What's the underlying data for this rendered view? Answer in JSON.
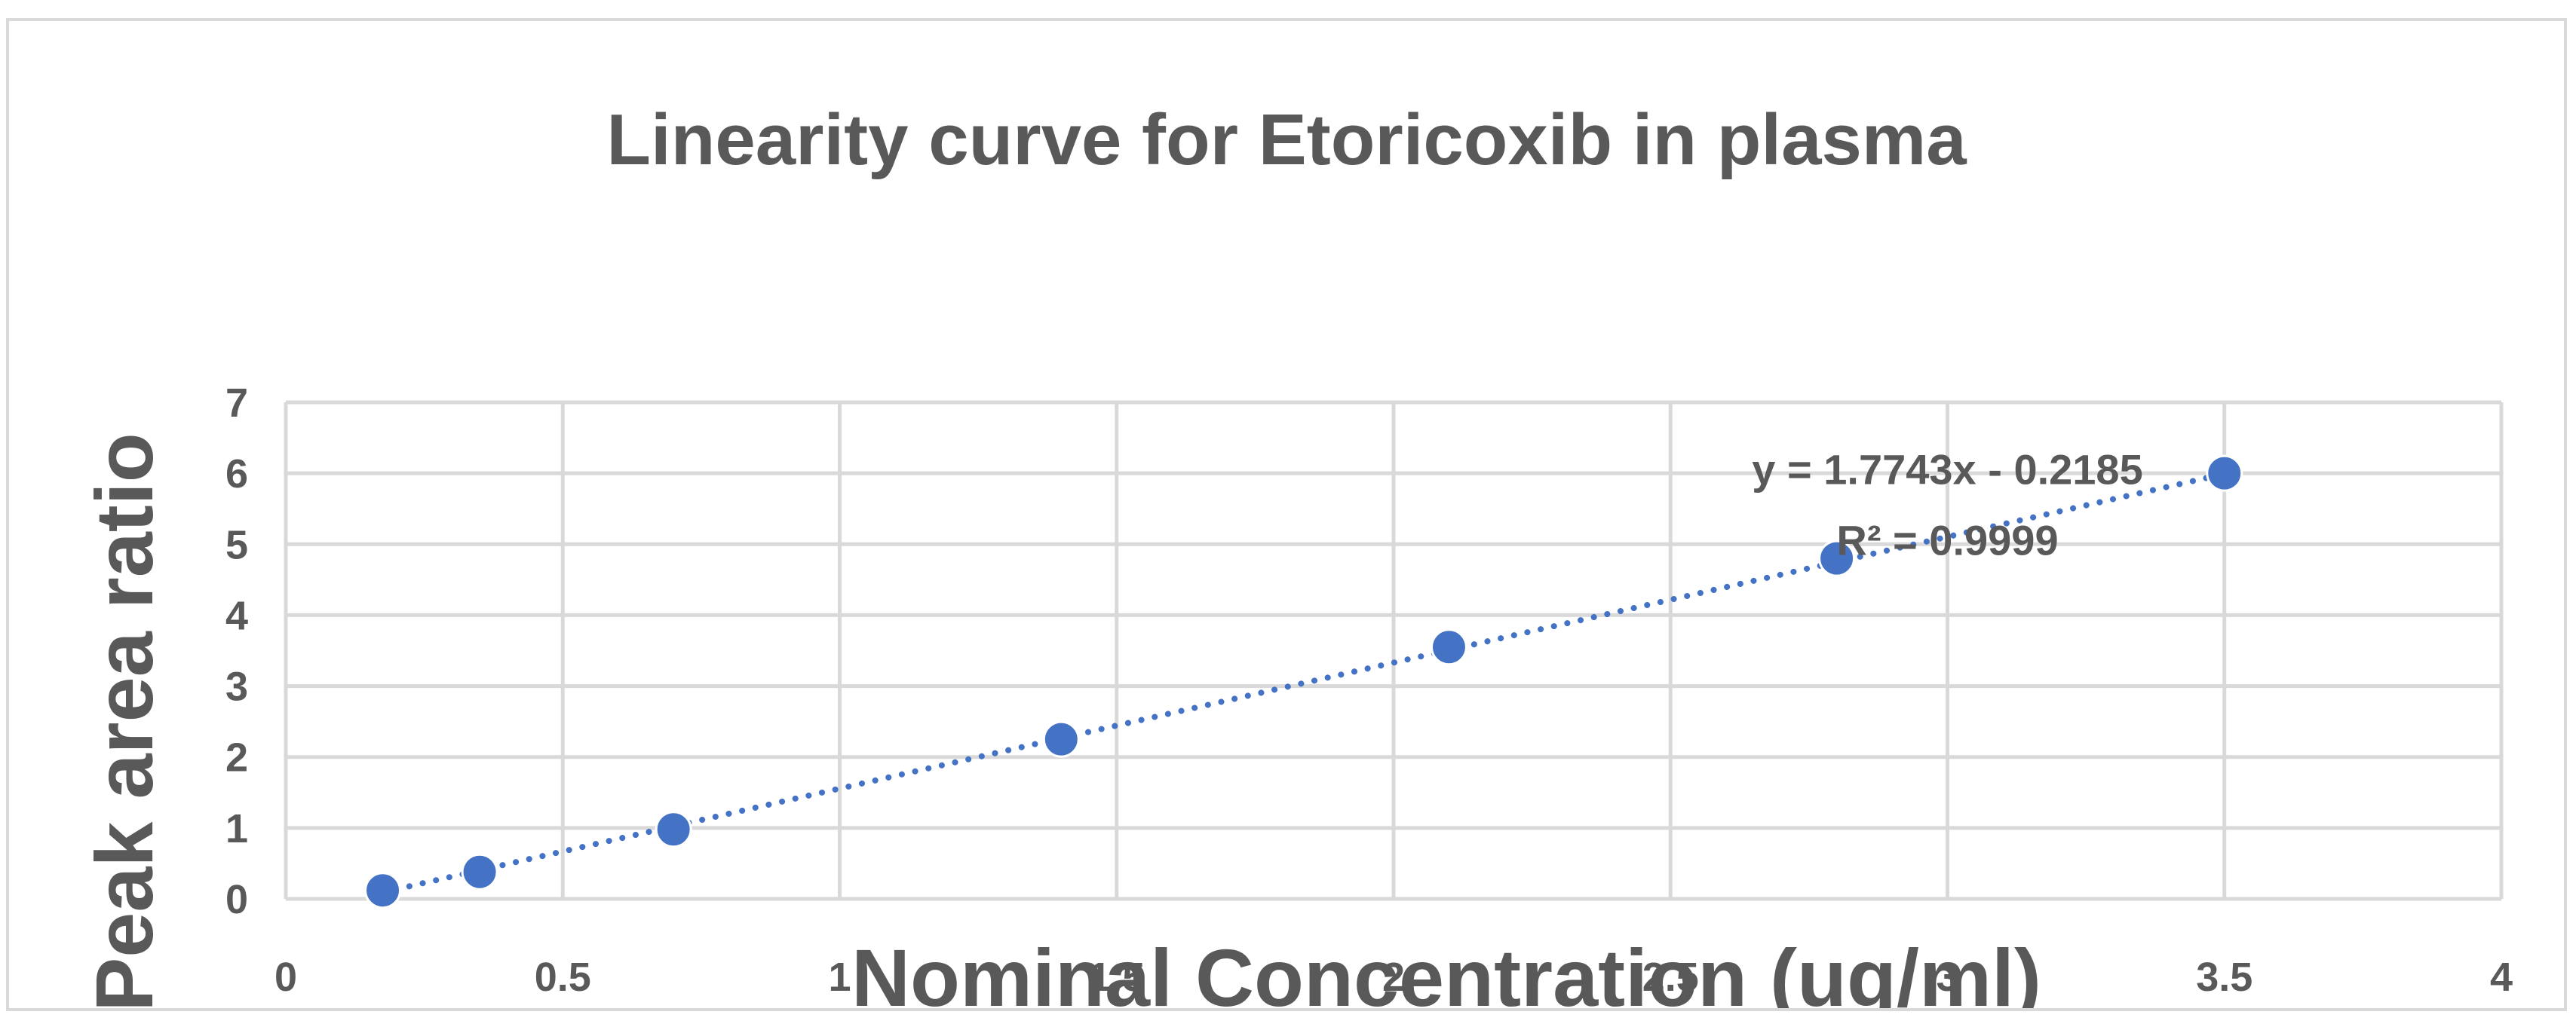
{
  "chart_data": {
    "type": "scatter",
    "title": "Linearity curve for Etoricoxib in plasma",
    "xlabel": "Nominal Concentration (ug/ml)",
    "ylabel": "Peak area ratio",
    "xlim": [
      0,
      4
    ],
    "ylim": [
      0,
      7
    ],
    "x_ticks": [
      "0",
      "0.5",
      "1",
      "1.5",
      "2",
      "2.5",
      "3",
      "3.5",
      "4"
    ],
    "y_ticks": [
      "0",
      "1",
      "2",
      "3",
      "4",
      "5",
      "6",
      "7"
    ],
    "grid": true,
    "points": [
      {
        "x": 0.175,
        "y": 0.12
      },
      {
        "x": 0.35,
        "y": 0.38
      },
      {
        "x": 0.7,
        "y": 0.98
      },
      {
        "x": 1.4,
        "y": 2.25
      },
      {
        "x": 2.1,
        "y": 3.55
      },
      {
        "x": 2.8,
        "y": 4.8
      },
      {
        "x": 3.5,
        "y": 6.0
      }
    ],
    "trendline": {
      "slope": 1.7743,
      "intercept": -0.2185,
      "equation": "y = 1.7743x - 0.2185",
      "r2": "R² = 0.9999"
    },
    "colors": {
      "series": "#4472c4",
      "grid": "#d9d9d9",
      "text": "#595959"
    }
  }
}
